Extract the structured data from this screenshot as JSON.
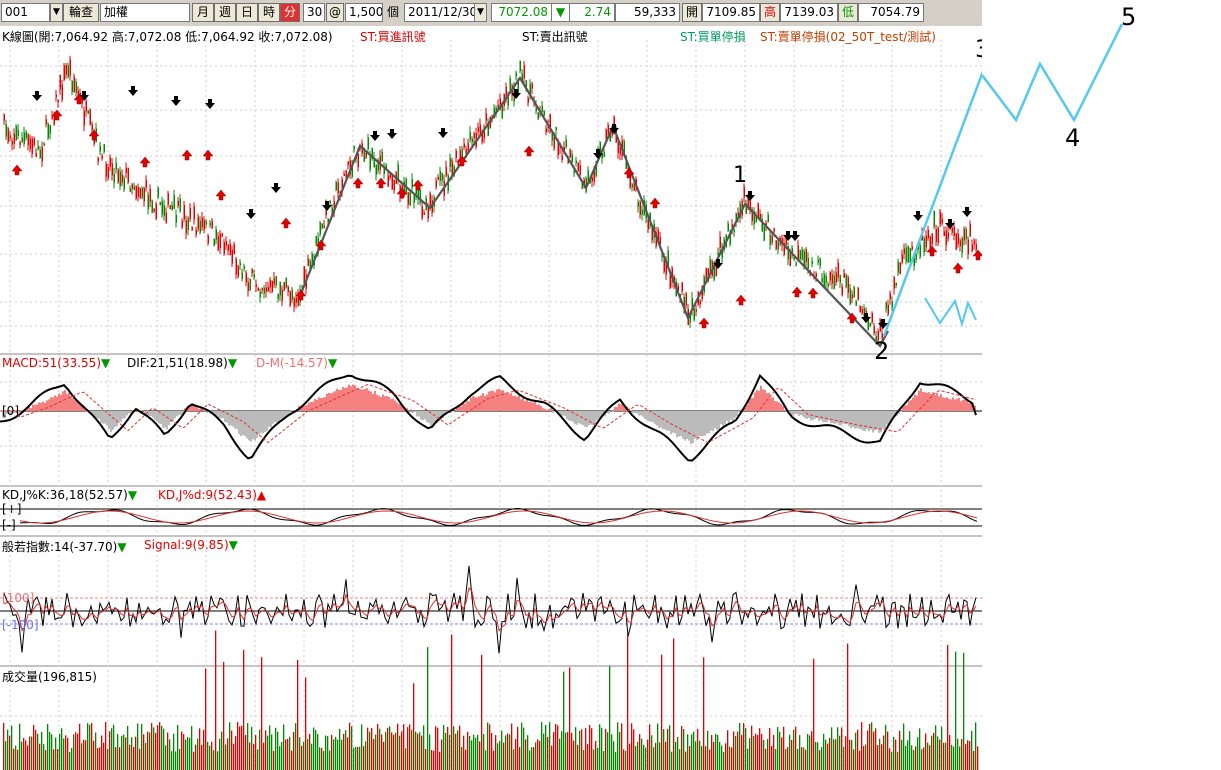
{
  "toolbar": {
    "symbol_code": "001",
    "menu_lookup": "輪查",
    "symbol_name": "加權",
    "period_month": "月",
    "period_week": "週",
    "period_day": "日",
    "period_hour": "時",
    "period_minute": "分",
    "interval": "30",
    "at_symbol": "@",
    "bar_count": "1,500",
    "bar_unit": "個",
    "date": "2011/12/30",
    "last_price": "7072.08",
    "change_arrow": "▼",
    "change": "2.74",
    "volume": "59,333",
    "open_label": "開",
    "open_value": "7109.85",
    "high_label": "高",
    "high_value": "7139.03",
    "low_label": "低",
    "low_value": "7054.79"
  },
  "kline_panel": {
    "ohlc_text": "K線圖(開:7,064.92 高:7,072.08 低:7,064.92 收:7,072.08)",
    "st_buy_signal": "ST:買進訊號",
    "st_sell_signal": "ST:賣出訊號",
    "st_buy_stop": "ST:買單停損",
    "st_sell_stop": "ST:賣單停損(02_50T_test/測試)"
  },
  "macd_panel": {
    "macd_label": "MACD:51(33.55)",
    "macd_arrow": "▼",
    "dif_label": "DIF:21,51(18.98)",
    "dif_arrow": "▼",
    "dm_label": "D-M(-14.57)",
    "dm_arrow": "▼",
    "zero_label": "[0]"
  },
  "kd_panel": {
    "k_label": "KD,J%K:36,18(52.57)",
    "k_arrow": "▼",
    "d_label": "KD,J%d:9(52.43)",
    "d_arrow": "▲",
    "upper_label": "[+]",
    "lower_label": "[-]"
  },
  "prajna_panel": {
    "index_label": "般若指數:14(-37.70)",
    "index_arrow": "▼",
    "signal_label": "Signal:9(9.85)",
    "signal_arrow": "▼",
    "upper_label": "[100]",
    "lower_label": "[-100]"
  },
  "volume_panel": {
    "volume_label": "成交量(196,815)"
  },
  "wave_annotations": {
    "w1": "1",
    "w2": "2",
    "w3": "3",
    "w4": "4",
    "w5": "5"
  },
  "colors": {
    "up": "#e00000",
    "down": "#008800",
    "wave_projection": "#55c8ee",
    "zigzag": "#555555",
    "macd_pos": "#f48080",
    "macd_neg": "#bbbbbb"
  }
}
